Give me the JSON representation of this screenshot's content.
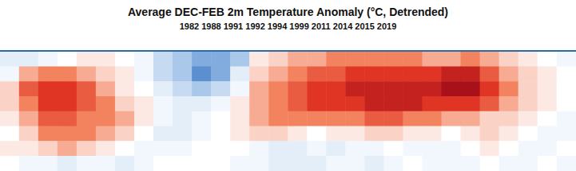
{
  "chart_data": {
    "type": "heatmap",
    "title": "Average DEC-FEB 2m Temperature Anomaly (°C, Detrended)",
    "subtitle": "1982 1988 1991 1992 1994 1999 2011 2014 2015 2019",
    "tick_labels": false,
    "clim": [
      -4,
      4
    ],
    "cells": [
      [
        -1,
        -1,
        -0.5,
        0,
        0.5,
        0.5,
        0,
        -0.5,
        -1.5,
        -2,
        -2.5,
        -2.5,
        -2,
        0.5,
        1,
        1.5,
        1.5,
        2,
        2,
        2,
        2,
        2,
        1.5,
        1.5,
        2,
        1.5,
        1,
        0.5,
        0,
        -0.5
      ],
      [
        -0.5,
        1.5,
        2,
        2,
        1.5,
        1,
        0.5,
        -0.5,
        -1.5,
        -2,
        -3,
        -2.5,
        -1,
        1,
        1.5,
        2,
        2.5,
        2.5,
        3,
        3,
        3,
        3,
        3,
        3.5,
        3.5,
        2.5,
        1.5,
        1,
        0.5,
        0
      ],
      [
        1,
        2.5,
        3,
        3,
        2.5,
        1.5,
        0.5,
        0,
        -1,
        -1.5,
        -2,
        -1.5,
        -0.5,
        1.5,
        2,
        2.5,
        3,
        3,
        3.5,
        3.5,
        3.5,
        3.5,
        3.5,
        4,
        4,
        3,
        2,
        1,
        0.5,
        0
      ],
      [
        1,
        2,
        3,
        3,
        2.5,
        2,
        1,
        0.5,
        -0.5,
        -1,
        -1,
        -0.5,
        0.5,
        1.5,
        2,
        2.5,
        3,
        3,
        3,
        3.5,
        3.5,
        3.5,
        3,
        3,
        3,
        2.5,
        1.5,
        1,
        0.5,
        0
      ],
      [
        0.5,
        1.5,
        2.5,
        2.5,
        2,
        2,
        1.5,
        0.5,
        -0.5,
        -1,
        -0.5,
        0,
        0.5,
        1.5,
        2,
        2,
        2,
        2,
        2,
        2.5,
        2.5,
        2,
        2,
        1.5,
        1.5,
        1,
        1,
        0.5,
        0,
        -0.5
      ],
      [
        0,
        1,
        2,
        2,
        2,
        1.5,
        1,
        0,
        -1,
        -1,
        -0.5,
        0,
        0.5,
        1,
        1,
        0.5,
        0,
        0.5,
        0.5,
        1,
        1,
        0.5,
        0.5,
        0,
        0.5,
        1,
        0.5,
        0,
        -0.5,
        -0.5
      ],
      [
        0.5,
        0.5,
        1,
        1.5,
        1,
        0.5,
        0,
        -0.5,
        -0.5,
        -0.5,
        0,
        0,
        0,
        -0.5,
        -1,
        -1,
        -0.5,
        -1,
        -0.5,
        -0.5,
        0,
        -0.5,
        -0.5,
        -0.5,
        0,
        0.5,
        0,
        -0.5,
        -0.5,
        0
      ],
      [
        0,
        -0.5,
        -0.5,
        -1,
        -0.5,
        -0.5,
        -1,
        -0.5,
        0,
        0,
        0,
        0,
        -0.5,
        -0.5,
        -1,
        -1,
        -1,
        -0.5,
        -0.5,
        -1,
        -0.5,
        0,
        -0.5,
        -0.5,
        -0.5,
        0,
        -0.5,
        -0.5,
        0,
        -0.5
      ]
    ]
  }
}
